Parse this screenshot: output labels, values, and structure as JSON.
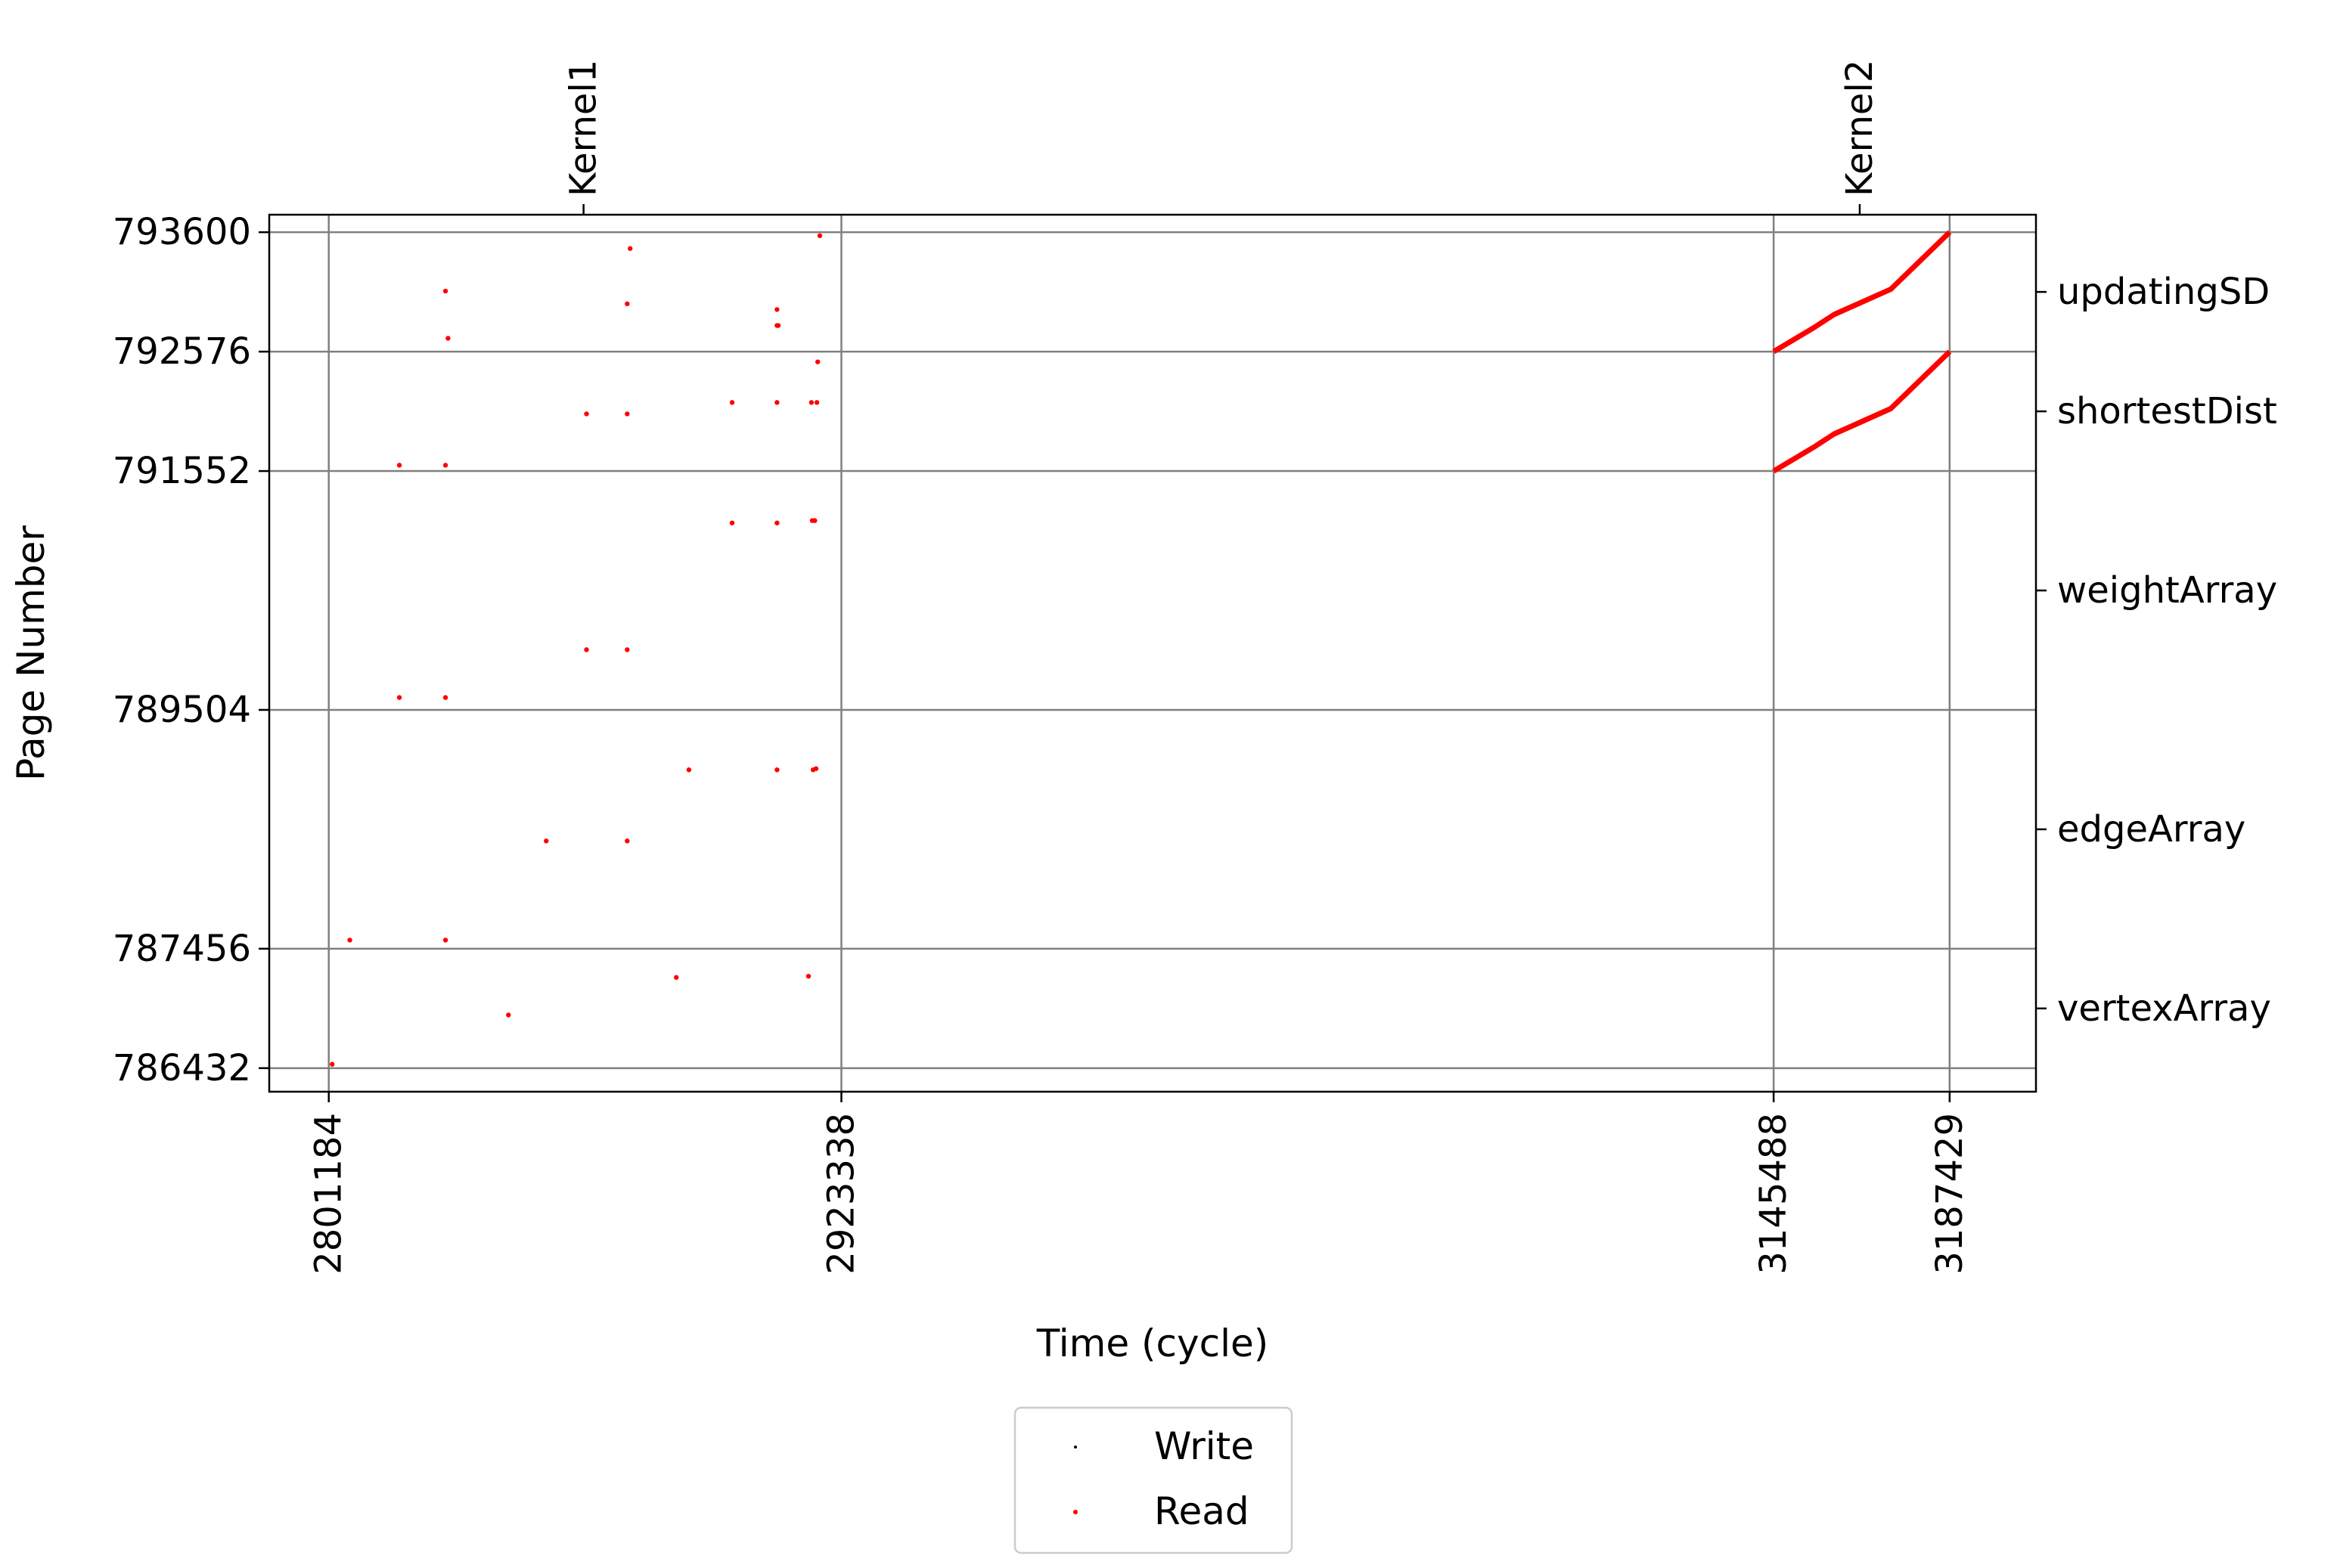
{
  "chart_data": {
    "type": "scatter",
    "title": "",
    "xlabel": "Time (cycle)",
    "ylabel": "Page Number",
    "xlim": [
      2787000,
      3208000
    ],
    "ylim": [
      786230,
      793750
    ],
    "grid": true,
    "legend_placement": "bottom-center",
    "x_ticks": [
      2801184,
      2923338,
      3145488,
      3187429
    ],
    "x_tick_labels": [
      "2801184",
      "2923338",
      "3145488",
      "3187429"
    ],
    "y_ticks": [
      786432,
      787456,
      789504,
      791552,
      792576,
      793600
    ],
    "y_tick_labels": [
      "786432",
      "787456",
      "789504",
      "791552",
      "792576",
      "793600"
    ],
    "kernel_markers": [
      {
        "label": "Kernel1",
        "x": 2861900
      },
      {
        "label": "Kernel2",
        "x": 3166000
      }
    ],
    "array_labels": [
      {
        "label": "updatingSD",
        "y": 793088
      },
      {
        "label": "shortestDist",
        "y": 792064
      },
      {
        "label": "weightArray",
        "y": 790528
      },
      {
        "label": "edgeArray",
        "y": 788480
      },
      {
        "label": "vertexArray",
        "y": 786944
      }
    ],
    "series": [
      {
        "name": "Write",
        "color": "#000000",
        "points": []
      },
      {
        "name": "Read",
        "color": "#ff0000",
        "points": [
          [
            2802000,
            786465
          ],
          [
            2806200,
            787530
          ],
          [
            2818000,
            791602
          ],
          [
            2818000,
            789610
          ],
          [
            2829000,
            793095
          ],
          [
            2829600,
            792690
          ],
          [
            2829000,
            791602
          ],
          [
            2829000,
            789610
          ],
          [
            2829000,
            787530
          ],
          [
            2844000,
            786888
          ],
          [
            2853000,
            788380
          ],
          [
            2862600,
            792042
          ],
          [
            2862600,
            790020
          ],
          [
            2873000,
            793460
          ],
          [
            2872300,
            792986
          ],
          [
            2872300,
            792042
          ],
          [
            2872300,
            790020
          ],
          [
            2872300,
            788380
          ],
          [
            2884000,
            787210
          ],
          [
            2887000,
            788990
          ],
          [
            2897300,
            792140
          ],
          [
            2897300,
            791107
          ],
          [
            2908000,
            792937
          ],
          [
            2908000,
            792800
          ],
          [
            2908300,
            792800
          ],
          [
            2908000,
            792140
          ],
          [
            2908000,
            791107
          ],
          [
            2908000,
            788990
          ],
          [
            2915500,
            787220
          ],
          [
            2916200,
            792140
          ],
          [
            2916400,
            791127
          ],
          [
            2916600,
            788990
          ],
          [
            2917000,
            791127
          ],
          [
            2917300,
            789000
          ],
          [
            2917500,
            792140
          ],
          [
            2917700,
            792488
          ],
          [
            2918200,
            793570
          ]
        ]
      }
    ],
    "sweeps": [
      {
        "name": "Read",
        "color": "#ff0000",
        "points": [
          [
            3145488,
            791552
          ],
          [
            3155200,
            791760
          ],
          [
            3159900,
            791870
          ],
          [
            3173400,
            792087
          ],
          [
            3187429,
            792576
          ]
        ]
      },
      {
        "name": "Read",
        "color": "#ff0000",
        "points": [
          [
            3145488,
            792576
          ],
          [
            3155200,
            792784
          ],
          [
            3159900,
            792894
          ],
          [
            3173400,
            793111
          ],
          [
            3187429,
            793600
          ]
        ]
      }
    ]
  }
}
